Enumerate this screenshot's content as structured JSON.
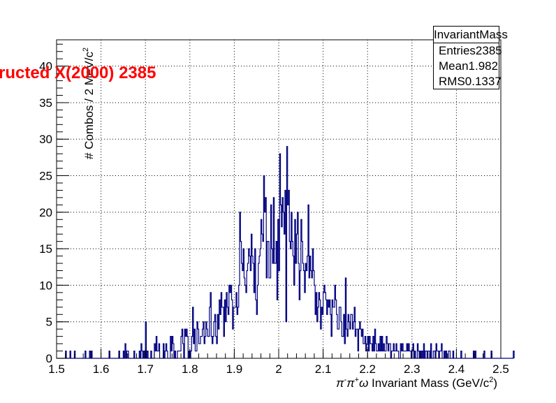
{
  "chart_data": {
    "type": "histogram",
    "x_edges_start": 1.5,
    "bin_width": 0.002,
    "values": [
      0,
      0,
      0,
      0,
      0,
      0,
      0,
      0,
      0,
      0,
      1,
      0,
      0,
      0,
      0,
      1,
      0,
      0,
      0,
      0,
      1,
      0,
      0,
      0,
      0,
      0,
      0,
      0,
      0,
      0,
      0,
      0,
      1,
      0,
      0,
      0,
      0,
      1,
      0,
      1,
      0,
      0,
      0,
      0,
      0,
      0,
      0,
      0,
      0,
      0,
      0,
      0,
      0,
      0,
      0,
      0,
      0,
      0,
      0,
      1,
      0,
      0,
      0,
      0,
      0,
      0,
      0,
      0,
      0,
      0,
      1,
      0,
      0,
      0,
      0,
      1,
      0,
      2,
      0,
      1,
      1,
      0,
      0,
      0,
      0,
      0,
      0,
      1,
      0,
      0,
      0,
      0,
      0,
      1,
      0,
      2,
      1,
      0,
      1,
      0,
      5,
      0,
      1,
      0,
      0,
      0,
      1,
      0,
      0,
      0,
      2,
      1,
      3,
      1,
      1,
      2,
      0,
      0,
      0,
      0,
      2,
      0,
      1,
      2,
      1,
      0,
      0,
      0,
      3,
      1,
      3,
      2,
      0,
      1,
      0,
      0,
      1,
      1,
      1,
      1,
      3,
      4,
      2,
      0,
      4,
      3,
      4,
      3,
      0,
      1,
      0,
      1,
      3,
      7,
      2,
      4,
      1,
      1,
      5,
      4,
      2,
      2,
      3,
      3,
      4,
      5,
      2,
      3,
      5,
      4,
      3,
      3,
      7,
      9,
      3,
      2,
      3,
      5,
      6,
      3,
      2,
      6,
      4,
      8,
      6,
      9,
      7,
      7,
      3,
      8,
      5,
      9,
      7,
      6,
      10,
      9,
      10,
      8,
      4,
      7,
      7,
      7,
      9,
      6,
      7,
      10,
      20,
      16,
      13,
      12,
      15,
      11,
      10,
      9,
      12,
      13,
      15,
      14,
      12,
      17,
      14,
      13,
      9,
      15,
      8,
      6,
      10,
      13,
      14,
      15,
      19,
      17,
      16,
      25,
      20,
      22,
      11,
      16,
      16,
      11,
      11,
      21,
      15,
      13,
      22,
      13,
      13,
      16,
      8,
      19,
      12,
      28,
      21,
      18,
      22,
      20,
      17,
      23,
      5,
      29,
      21,
      23,
      16,
      15,
      20,
      16,
      14,
      10,
      19,
      13,
      17,
      20,
      13,
      8,
      12,
      19,
      16,
      13,
      12,
      9,
      13,
      12,
      14,
      21,
      11,
      14,
      12,
      11,
      15,
      12,
      10,
      6,
      9,
      5,
      7,
      9,
      8,
      4,
      7,
      6,
      9,
      10,
      9,
      8,
      6,
      8,
      7,
      8,
      6,
      3,
      8,
      7,
      7,
      10,
      8,
      6,
      4,
      4,
      7,
      7,
      5,
      3,
      3,
      6,
      2,
      11,
      4,
      3,
      6,
      5,
      4,
      6,
      6,
      4,
      5,
      7,
      3,
      4,
      4,
      1,
      4,
      5,
      4,
      3,
      4,
      2,
      2,
      3,
      1,
      2,
      3,
      1,
      3,
      2,
      2,
      1,
      3,
      1,
      4,
      2,
      1,
      1,
      2,
      1,
      3,
      1,
      3,
      1,
      2,
      1,
      1,
      3,
      2,
      1,
      2,
      2,
      0,
      1,
      1,
      2,
      1,
      1,
      2,
      1,
      1,
      0,
      0,
      2,
      1,
      2,
      1,
      1,
      1,
      1,
      2,
      1,
      2,
      1,
      1,
      0,
      1,
      2,
      0,
      1,
      0,
      0,
      2,
      1,
      0,
      1,
      0,
      1,
      0,
      2,
      0,
      1,
      1,
      0,
      1,
      1,
      0,
      2,
      0,
      0,
      1,
      1,
      0,
      2,
      1,
      1,
      0,
      1,
      1,
      2,
      0,
      0,
      1,
      0,
      1,
      0,
      0,
      1,
      1,
      0,
      0,
      0,
      1,
      0,
      0,
      0,
      0,
      0,
      0,
      0,
      0,
      1,
      0,
      0,
      0,
      0,
      0,
      0,
      0,
      0,
      0,
      0,
      0,
      0,
      0,
      1,
      0,
      1,
      0,
      0,
      0,
      0,
      0,
      0,
      0,
      0,
      0,
      1,
      0,
      0,
      0,
      0,
      0,
      0,
      0,
      1,
      0,
      0,
      0,
      0,
      0,
      0,
      0,
      0,
      0,
      0,
      0,
      0,
      0,
      0,
      0,
      0,
      0,
      0,
      0,
      0,
      0,
      0,
      0,
      0,
      1
    ],
    "xlim": [
      1.5,
      2.5
    ],
    "ylim": [
      0,
      43.6
    ],
    "x_ticks": [
      "1.5",
      "1.6",
      "1.7",
      "1.8",
      "1.9",
      "2",
      "2.1",
      "2.2",
      "2.3",
      "2.4",
      "2.5"
    ],
    "y_ticks": [
      "0",
      "5",
      "10",
      "15",
      "20",
      "25",
      "30",
      "35",
      "40"
    ],
    "xlabel_pre": "π",
    "xlabel_sup1": "-",
    "xlabel_mid": "π",
    "xlabel_sup2": "+",
    "xlabel_omega": "ω",
    "xlabel_text": " Invariant Mass (GeV/c",
    "xlabel_sup3": "2",
    "xlabel_end": ")",
    "ylabel_text": "# Combos / 2 MeV/c",
    "ylabel_sup": "2",
    "grid": true,
    "line_color": "#000080",
    "overlay_title": "ructed X(2000) 2385",
    "overlay_color": "#ff0000"
  },
  "stats": {
    "title": "InvariantMass",
    "rows": [
      {
        "label": "Entries",
        "value": "2385"
      },
      {
        "label": "Mean",
        "value": "1.982"
      },
      {
        "label": "RMS",
        "value": "0.1337"
      }
    ]
  }
}
